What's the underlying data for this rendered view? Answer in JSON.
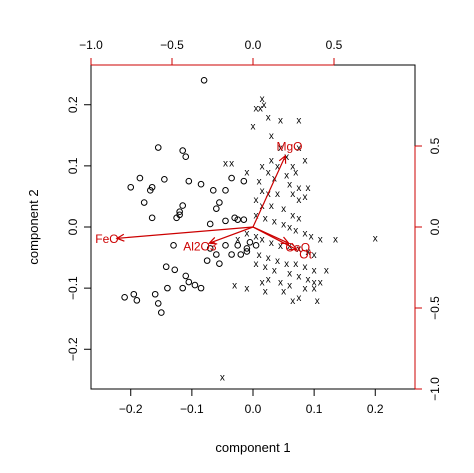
{
  "chart_data": {
    "type": "scatter",
    "subtype": "biplot",
    "title": "",
    "xlabel": "component 1",
    "ylabel": "component 2",
    "xlim": [
      -0.265,
      0.265
    ],
    "ylim": [
      -0.265,
      0.265
    ],
    "x_ticks": [
      -0.2,
      -0.1,
      0.0,
      0.1,
      0.2
    ],
    "x_tick_labels": [
      "−0.2",
      "−0.1",
      "0.0",
      "0.1",
      "0.2"
    ],
    "y_ticks": [
      -0.2,
      -0.1,
      0.0,
      0.1,
      0.2
    ],
    "y_tick_labels": [
      "−0.2",
      "−0.1",
      "0.0",
      "0.1",
      "0.2"
    ],
    "top_axis": {
      "lim": [
        -1.0,
        1.0
      ],
      "ticks": [
        -1.0,
        -0.5,
        0.0,
        0.5
      ],
      "tick_labels": [
        "−1.0",
        "−0.5",
        "0.0",
        "0.5"
      ],
      "color": "#cc0000"
    },
    "right_axis": {
      "lim": [
        -1.0,
        1.0
      ],
      "ticks": [
        -1.0,
        -0.5,
        0.0,
        0.5
      ],
      "tick_labels": [
        "−1.0",
        "−0.5",
        "0.0",
        "0.5"
      ],
      "color": "#cc0000"
    },
    "grid": false,
    "series": [
      {
        "marker": "o",
        "color": "#000000",
        "points": [
          [
            -0.08,
            0.24
          ],
          [
            -0.2,
            0.065
          ],
          [
            -0.155,
            0.13
          ],
          [
            -0.115,
            0.125
          ],
          [
            -0.11,
            0.115
          ],
          [
            -0.145,
            0.078
          ],
          [
            -0.105,
            0.075
          ],
          [
            -0.085,
            0.07
          ],
          [
            -0.035,
            0.08
          ],
          [
            -0.015,
            0.075
          ],
          [
            -0.185,
            0.08
          ],
          [
            -0.165,
            0.065
          ],
          [
            -0.168,
            0.06
          ],
          [
            -0.178,
            0.04
          ],
          [
            -0.165,
            0.015
          ],
          [
            -0.115,
            0.035
          ],
          [
            -0.12,
            0.025
          ],
          [
            -0.065,
            0.06
          ],
          [
            -0.055,
            0.04
          ],
          [
            -0.045,
            0.06
          ],
          [
            -0.06,
            0.03
          ],
          [
            -0.045,
            0.01
          ],
          [
            -0.03,
            0.015
          ],
          [
            -0.025,
            0.012
          ],
          [
            -0.015,
            0.012
          ],
          [
            -0.07,
            0.005
          ],
          [
            -0.12,
            0.02
          ],
          [
            -0.125,
            0.015
          ],
          [
            -0.13,
            -0.03
          ],
          [
            -0.142,
            -0.065
          ],
          [
            -0.128,
            -0.07
          ],
          [
            -0.11,
            -0.08
          ],
          [
            -0.105,
            -0.09
          ],
          [
            -0.115,
            -0.1
          ],
          [
            -0.095,
            -0.095
          ],
          [
            -0.07,
            -0.035
          ],
          [
            -0.06,
            -0.045
          ],
          [
            -0.075,
            -0.055
          ],
          [
            -0.055,
            -0.06
          ],
          [
            -0.045,
            -0.03
          ],
          [
            -0.02,
            -0.045
          ],
          [
            -0.035,
            -0.045
          ],
          [
            -0.025,
            -0.03
          ],
          [
            -0.01,
            -0.04
          ],
          [
            -0.005,
            -0.025
          ],
          [
            -0.21,
            -0.115
          ],
          [
            -0.195,
            -0.11
          ],
          [
            -0.19,
            -0.12
          ],
          [
            -0.16,
            -0.11
          ],
          [
            -0.155,
            -0.125
          ],
          [
            -0.15,
            -0.14
          ],
          [
            -0.01,
            -0.035
          ],
          [
            0.005,
            -0.03
          ],
          [
            -0.085,
            -0.1
          ],
          [
            -0.14,
            -0.1
          ]
        ]
      },
      {
        "marker": "x",
        "color": "#000000",
        "points": [
          [
            0.015,
            0.21
          ],
          [
            0.018,
            0.2
          ],
          [
            0.012,
            0.195
          ],
          [
            0.025,
            0.18
          ],
          [
            0.005,
            0.195
          ],
          [
            0.045,
            0.175
          ],
          [
            0.075,
            0.175
          ],
          [
            0.0,
            0.165
          ],
          [
            0.03,
            0.15
          ],
          [
            0.045,
            0.13
          ],
          [
            0.075,
            0.13
          ],
          [
            0.055,
            0.115
          ],
          [
            0.065,
            0.1
          ],
          [
            0.085,
            0.11
          ],
          [
            0.03,
            0.11
          ],
          [
            -0.035,
            0.105
          ],
          [
            -0.045,
            0.105
          ],
          [
            0.015,
            0.1
          ],
          [
            0.04,
            0.1
          ],
          [
            0.055,
            0.085
          ],
          [
            0.07,
            0.09
          ],
          [
            0.025,
            0.09
          ],
          [
            -0.01,
            0.09
          ],
          [
            0.01,
            0.075
          ],
          [
            0.035,
            0.08
          ],
          [
            0.06,
            0.07
          ],
          [
            0.075,
            0.065
          ],
          [
            0.09,
            0.065
          ],
          [
            0.015,
            0.06
          ],
          [
            0.025,
            0.055
          ],
          [
            0.04,
            0.055
          ],
          [
            0.065,
            0.055
          ],
          [
            0.075,
            0.045
          ],
          [
            0.085,
            0.05
          ],
          [
            0.005,
            0.045
          ],
          [
            0.015,
            0.035
          ],
          [
            0.03,
            0.035
          ],
          [
            0.05,
            0.03
          ],
          [
            0.065,
            0.02
          ],
          [
            0.075,
            0.015
          ],
          [
            0.005,
            0.02
          ],
          [
            0.02,
            0.015
          ],
          [
            0.035,
            0.01
          ],
          [
            0.05,
            0.005
          ],
          [
            0.06,
            0.0
          ],
          [
            0.07,
            -0.005
          ],
          [
            0.085,
            -0.01
          ],
          [
            0.095,
            -0.015
          ],
          [
            0.11,
            -0.02
          ],
          [
            0.135,
            -0.02
          ],
          [
            0.2,
            -0.018
          ],
          [
            -0.01,
            -0.01
          ],
          [
            0.005,
            -0.015
          ],
          [
            0.015,
            -0.02
          ],
          [
            0.03,
            -0.025
          ],
          [
            0.045,
            -0.03
          ],
          [
            0.06,
            -0.03
          ],
          [
            0.075,
            -0.035
          ],
          [
            0.09,
            -0.04
          ],
          [
            0.1,
            -0.045
          ],
          [
            -0.025,
            -0.02
          ],
          [
            0.01,
            -0.045
          ],
          [
            0.025,
            -0.05
          ],
          [
            0.04,
            -0.055
          ],
          [
            0.055,
            -0.06
          ],
          [
            0.07,
            -0.06
          ],
          [
            0.085,
            -0.065
          ],
          [
            0.1,
            -0.07
          ],
          [
            0.12,
            -0.07
          ],
          [
            0.005,
            -0.06
          ],
          [
            0.02,
            -0.065
          ],
          [
            0.035,
            -0.07
          ],
          [
            0.06,
            -0.075
          ],
          [
            0.075,
            -0.08
          ],
          [
            0.09,
            -0.085
          ],
          [
            0.1,
            -0.09
          ],
          [
            0.11,
            -0.09
          ],
          [
            0.025,
            -0.085
          ],
          [
            0.045,
            -0.09
          ],
          [
            0.06,
            -0.095
          ],
          [
            0.085,
            -0.1
          ],
          [
            0.1,
            -0.1
          ],
          [
            -0.03,
            -0.095
          ],
          [
            -0.01,
            -0.1
          ],
          [
            0.02,
            -0.105
          ],
          [
            0.05,
            -0.105
          ],
          [
            0.075,
            -0.115
          ],
          [
            0.065,
            -0.12
          ],
          [
            0.105,
            -0.12
          ],
          [
            0.015,
            -0.09
          ],
          [
            -0.05,
            -0.245
          ]
        ]
      }
    ],
    "loadings": [
      {
        "label": "MgO",
        "x": 0.2,
        "y": 0.44,
        "color": "#cc0000"
      },
      {
        "label": "FeO",
        "x": -0.84,
        "y": -0.07,
        "color": "#cc0000"
      },
      {
        "label": "Al2O3",
        "x": -0.27,
        "y": -0.1,
        "color": "#cc0000"
      },
      {
        "label": "CaO",
        "x": 0.22,
        "y": -0.1,
        "color": "#cc0000"
      },
      {
        "label": "Ot",
        "x": 0.27,
        "y": -0.14,
        "color": "#cc0000"
      }
    ]
  }
}
